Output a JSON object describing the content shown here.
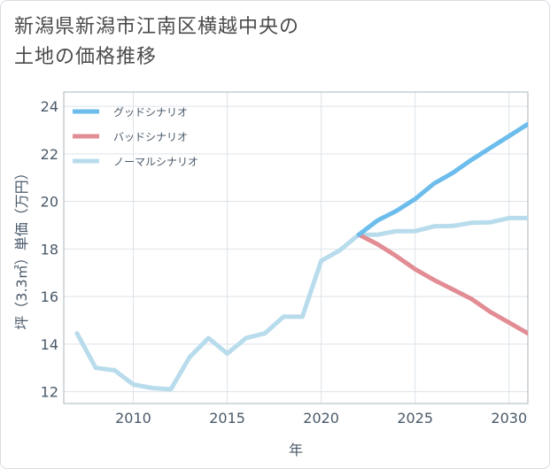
{
  "title_lines": [
    "新潟県新潟市江南区横越中央の",
    "土地の価格推移"
  ],
  "chart_data": {
    "type": "line",
    "xlabel": "年",
    "ylabel": "坪（3.3㎡）単価（万円）",
    "xlim": [
      2006.3,
      2031
    ],
    "ylim": [
      11.5,
      24.6
    ],
    "xticks": [
      2010,
      2015,
      2020,
      2025,
      2030
    ],
    "yticks": [
      12,
      14,
      16,
      18,
      20,
      22,
      24
    ],
    "grid": true,
    "legend_position": "top-left",
    "series": [
      {
        "name": "グッドシナリオ",
        "color": "#6cbcec",
        "x": [
          2022,
          2023,
          2024,
          2025,
          2026,
          2027,
          2028,
          2029,
          2030,
          2031
        ],
        "y": [
          18.6,
          19.2,
          19.6,
          20.1,
          20.75,
          21.2,
          21.75,
          22.25,
          22.75,
          23.25
        ]
      },
      {
        "name": "バッドシナリオ",
        "color": "#e28c94",
        "x": [
          2022,
          2023,
          2024,
          2025,
          2026,
          2027,
          2028,
          2029,
          2030,
          2031
        ],
        "y": [
          18.6,
          18.2,
          17.7,
          17.15,
          16.7,
          16.3,
          15.9,
          15.35,
          14.9,
          14.45
        ]
      },
      {
        "name": "ノーマルシナリオ",
        "color": "#b8dcec",
        "x": [
          2007,
          2008,
          2009,
          2010,
          2011,
          2012,
          2013,
          2014,
          2015,
          2016,
          2017,
          2018,
          2019,
          2020,
          2021,
          2022,
          2023,
          2024,
          2025,
          2026,
          2027,
          2028,
          2029,
          2030,
          2031
        ],
        "y": [
          14.45,
          13.0,
          12.9,
          12.3,
          12.15,
          12.1,
          13.45,
          14.25,
          13.6,
          14.25,
          14.45,
          15.15,
          15.15,
          17.5,
          17.95,
          18.6,
          18.6,
          18.75,
          18.75,
          18.95,
          18.97,
          19.1,
          19.12,
          19.3,
          19.3
        ]
      }
    ]
  }
}
